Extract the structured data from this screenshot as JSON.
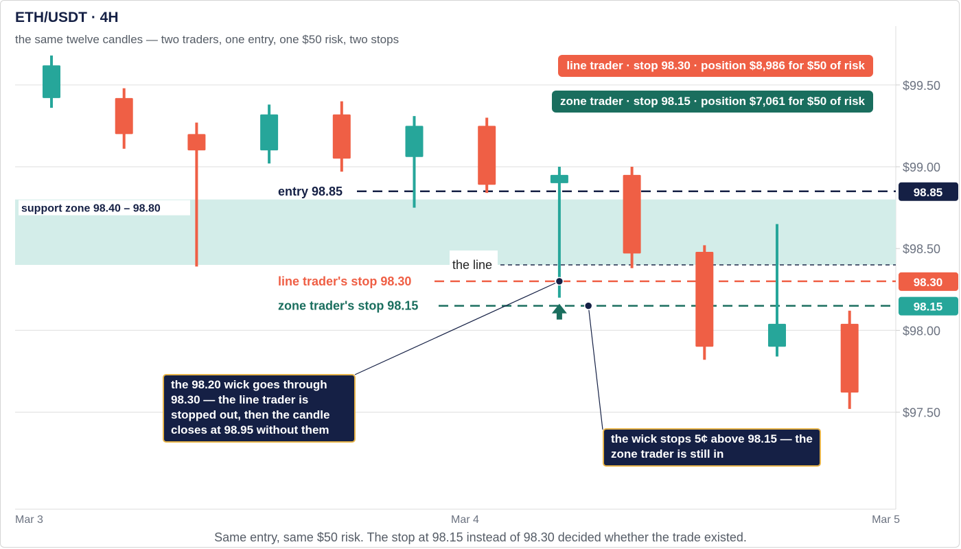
{
  "title": "ETH/USDT · 4H",
  "subtitle": "the same twelve candles — two traders, one entry, one $50 risk, two stops",
  "caption": "Same entry, same $50 risk. The stop at 98.15 instead of 98.30 decided whether the trade existed.",
  "colors": {
    "up": "#26a69a",
    "down": "#ef5f45",
    "navy": "#152045",
    "zone_fill": "#d3ede9",
    "zone_stop": "#1a6e5e",
    "callout_border": "#e7b44a",
    "grid": "#e4e4e4"
  },
  "chart_data": {
    "type": "candlestick",
    "y_ticks": [
      {
        "value": 99.5,
        "label": "$99.50"
      },
      {
        "value": 99.0,
        "label": "$99.00"
      },
      {
        "value": 98.5,
        "label": "$98.50"
      },
      {
        "value": 98.0,
        "label": "$98.00"
      },
      {
        "value": 97.5,
        "label": "$97.50"
      }
    ],
    "ylim": [
      96.95,
      99.85
    ],
    "x_ticks": [
      {
        "index": 0,
        "label": "Mar 3"
      },
      {
        "index": 5.7,
        "label": "Mar 4"
      },
      {
        "index": 11.5,
        "label": "Mar 5"
      }
    ],
    "candles": [
      {
        "open": 99.42,
        "high": 99.68,
        "low": 99.36,
        "close": 99.62
      },
      {
        "open": 99.42,
        "high": 99.48,
        "low": 99.11,
        "close": 99.2
      },
      {
        "open": 99.2,
        "high": 99.27,
        "low": 98.39,
        "close": 99.1
      },
      {
        "open": 99.1,
        "high": 99.38,
        "low": 99.02,
        "close": 99.32
      },
      {
        "open": 99.32,
        "high": 99.4,
        "low": 98.97,
        "close": 99.05
      },
      {
        "open": 99.06,
        "high": 99.31,
        "low": 98.75,
        "close": 99.25
      },
      {
        "open": 99.25,
        "high": 99.3,
        "low": 98.84,
        "close": 98.89
      },
      {
        "open": 98.9,
        "high": 99.0,
        "low": 98.2,
        "close": 98.95
      },
      {
        "open": 98.95,
        "high": 99.0,
        "low": 98.38,
        "close": 98.47
      },
      {
        "open": 98.48,
        "high": 98.52,
        "low": 97.82,
        "close": 97.9
      },
      {
        "open": 97.9,
        "high": 98.65,
        "low": 97.84,
        "close": 98.04
      },
      {
        "open": 98.04,
        "high": 98.12,
        "low": 97.52,
        "close": 97.62
      }
    ],
    "support_zone": {
      "low": 98.4,
      "high": 98.8,
      "label": "support zone 98.40 – 98.80"
    },
    "levels": [
      {
        "value": 98.85,
        "text": "entry 98.85",
        "tag": "98.85",
        "kind": "entry"
      },
      {
        "value": 98.4,
        "text": "the line",
        "tag": "",
        "kind": "line"
      },
      {
        "value": 98.3,
        "text": "line trader's stop 98.30",
        "tag": "98.30",
        "kind": "line_stop"
      },
      {
        "value": 98.15,
        "text": "zone trader's stop 98.15",
        "tag": "98.15",
        "kind": "zone_stop"
      }
    ],
    "markers": [
      {
        "index": 7,
        "value": 98.3,
        "shape": "dot"
      },
      {
        "index": 7.4,
        "value": 98.15,
        "shape": "dot"
      },
      {
        "index": 7,
        "value": 98.15,
        "shape": "up-arrow"
      }
    ]
  },
  "pills": {
    "line_trader": "line trader · stop 98.30 · position $8,986 for $50 of risk",
    "zone_trader": "zone trader · stop 98.15 · position $7,061 for $50 of risk"
  },
  "callouts": {
    "line_trader": "the 98.20 wick goes through 98.30 — the line trader is stopped out, then the candle closes at 98.95 without them",
    "zone_trader": "the wick stops 5¢ above 98.15 — the zone trader is still in"
  }
}
